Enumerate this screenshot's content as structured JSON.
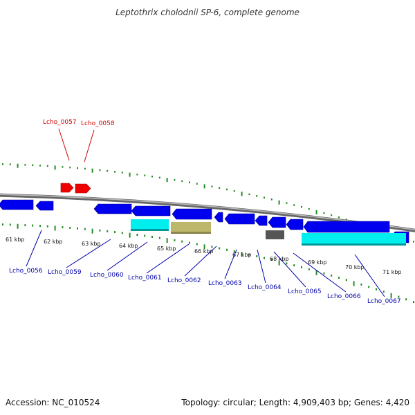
{
  "title": "Leptothrix cholodnii SP-6, complete genome",
  "footer": {
    "accession": "Accession: NC_010524",
    "summary": "Topology: circular; Length: 4,909,403 bp; Genes: 4,420"
  },
  "colors": {
    "backbone": "#888888",
    "forward_gene": "#ee0000",
    "reverse_gene": "#0000ee",
    "cyan_feature": "#00eeee",
    "khaki_feature": "#bdb76b",
    "gray_feature": "#555555",
    "tick": "#228b22",
    "label_forward": "#cc0000",
    "label_reverse": "#0000aa"
  },
  "scale_labels": [
    "61 kbp",
    "62 kbp",
    "63 kbp",
    "64 kbp",
    "65 kbp",
    "66 kbp",
    "67 kbp",
    "68 kbp",
    "69 kbp",
    "70 kbp",
    "71 kbp"
  ],
  "forward_labels": [
    "Lcho_0057",
    "Lcho_0058"
  ],
  "reverse_labels": [
    "Lcho_0056",
    "Lcho_0059",
    "Lcho_0060",
    "Lcho_0061",
    "Lcho_0062",
    "Lcho_0063",
    "Lcho_0064",
    "Lcho_0065",
    "Lcho_0066",
    "Lcho_0067"
  ]
}
